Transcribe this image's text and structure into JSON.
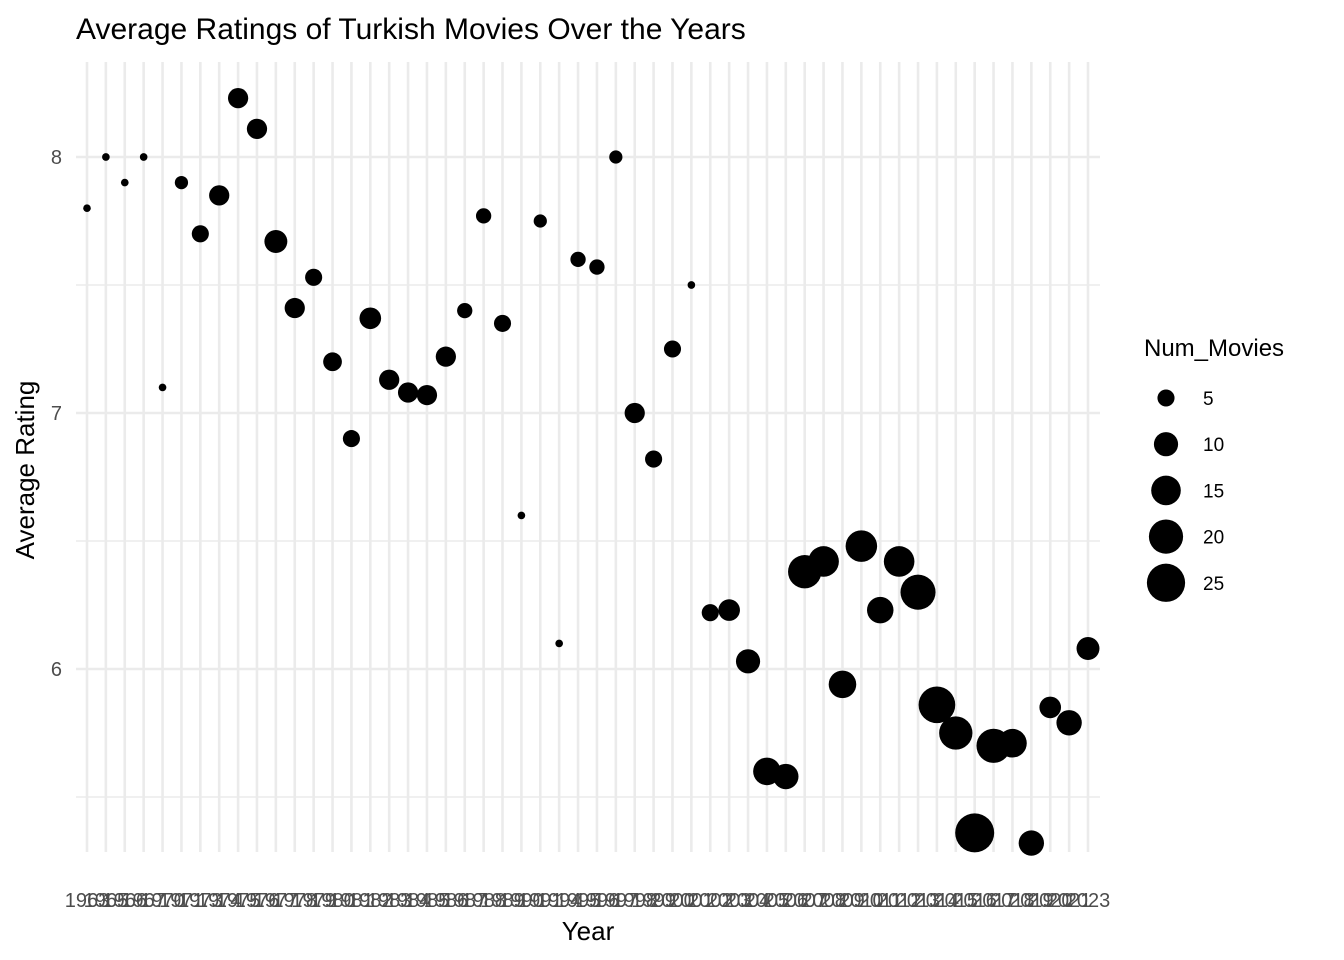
{
  "chart_data": {
    "type": "scatter",
    "title": "Average Ratings of Turkish Movies Over the Years",
    "xlabel": "Year",
    "ylabel": "Average Rating",
    "x_scale": "discrete",
    "ylim": [
      5.3,
      8.3
    ],
    "y_ticks": [
      6,
      7,
      8
    ],
    "grid": true,
    "legend": {
      "title": "Num_Movies",
      "placement": "right",
      "sizes": [
        5,
        10,
        15,
        20,
        25
      ]
    },
    "colors": {
      "points": "#000000",
      "grid": "#ebebeb"
    },
    "points": [
      {
        "year": "1963",
        "rating": 7.8,
        "num_movies": 1
      },
      {
        "year": "1965",
        "rating": 8.0,
        "num_movies": 1
      },
      {
        "year": "1966",
        "rating": 7.9,
        "num_movies": 1
      },
      {
        "year": "1967",
        "rating": 8.0,
        "num_movies": 1
      },
      {
        "year": "1970",
        "rating": 7.1,
        "num_movies": 1
      },
      {
        "year": "1971",
        "rating": 7.9,
        "num_movies": 3
      },
      {
        "year": "1973",
        "rating": 7.7,
        "num_movies": 5
      },
      {
        "year": "1974",
        "rating": 7.85,
        "num_movies": 7
      },
      {
        "year": "1975",
        "rating": 8.23,
        "num_movies": 7
      },
      {
        "year": "1976",
        "rating": 8.11,
        "num_movies": 7
      },
      {
        "year": "1977",
        "rating": 7.67,
        "num_movies": 9
      },
      {
        "year": "1978",
        "rating": 7.41,
        "num_movies": 7
      },
      {
        "year": "1979",
        "rating": 7.53,
        "num_movies": 5
      },
      {
        "year": "1980",
        "rating": 7.2,
        "num_movies": 6
      },
      {
        "year": "1981",
        "rating": 6.9,
        "num_movies": 5
      },
      {
        "year": "1982",
        "rating": 7.37,
        "num_movies": 8
      },
      {
        "year": "1983",
        "rating": 7.13,
        "num_movies": 7
      },
      {
        "year": "1984",
        "rating": 7.08,
        "num_movies": 7
      },
      {
        "year": "1985",
        "rating": 7.07,
        "num_movies": 7
      },
      {
        "year": "1986",
        "rating": 7.22,
        "num_movies": 7
      },
      {
        "year": "1987",
        "rating": 7.4,
        "num_movies": 4
      },
      {
        "year": "1988",
        "rating": 7.77,
        "num_movies": 4
      },
      {
        "year": "1989",
        "rating": 7.35,
        "num_movies": 5
      },
      {
        "year": "1990",
        "rating": 6.6,
        "num_movies": 1
      },
      {
        "year": "1991",
        "rating": 7.75,
        "num_movies": 3
      },
      {
        "year": "1994",
        "rating": 6.1,
        "num_movies": 1
      },
      {
        "year": "1995",
        "rating": 7.6,
        "num_movies": 4
      },
      {
        "year": "1996",
        "rating": 7.57,
        "num_movies": 4
      },
      {
        "year": "1997",
        "rating": 8.0,
        "num_movies": 3
      },
      {
        "year": "1998",
        "rating": 7.0,
        "num_movies": 7
      },
      {
        "year": "1999",
        "rating": 6.82,
        "num_movies": 5
      },
      {
        "year": "2000",
        "rating": 7.25,
        "num_movies": 5
      },
      {
        "year": "2001",
        "rating": 7.5,
        "num_movies": 1
      },
      {
        "year": "2002",
        "rating": 6.22,
        "num_movies": 5
      },
      {
        "year": "2003",
        "rating": 6.23,
        "num_movies": 8
      },
      {
        "year": "2004",
        "rating": 6.03,
        "num_movies": 10
      },
      {
        "year": "2005",
        "rating": 5.6,
        "num_movies": 13
      },
      {
        "year": "2006",
        "rating": 5.58,
        "num_movies": 11
      },
      {
        "year": "2007",
        "rating": 6.38,
        "num_movies": 19
      },
      {
        "year": "2008",
        "rating": 6.42,
        "num_movies": 16
      },
      {
        "year": "2009",
        "rating": 5.94,
        "num_movies": 13
      },
      {
        "year": "2010",
        "rating": 6.48,
        "num_movies": 17
      },
      {
        "year": "2011",
        "rating": 6.23,
        "num_movies": 12
      },
      {
        "year": "2012",
        "rating": 6.42,
        "num_movies": 16
      },
      {
        "year": "2013",
        "rating": 6.3,
        "num_movies": 21
      },
      {
        "year": "2014",
        "rating": 5.86,
        "num_movies": 23
      },
      {
        "year": "2015",
        "rating": 5.75,
        "num_movies": 19
      },
      {
        "year": "2016",
        "rating": 5.36,
        "num_movies": 26
      },
      {
        "year": "2017",
        "rating": 5.7,
        "num_movies": 20
      },
      {
        "year": "2018",
        "rating": 5.71,
        "num_movies": 14
      },
      {
        "year": "2019",
        "rating": 5.32,
        "num_movies": 11
      },
      {
        "year": "2020",
        "rating": 5.85,
        "num_movies": 8
      },
      {
        "year": "2021",
        "rating": 5.79,
        "num_movies": 11
      },
      {
        "year": "2023",
        "rating": 6.08,
        "num_movies": 9
      }
    ]
  }
}
